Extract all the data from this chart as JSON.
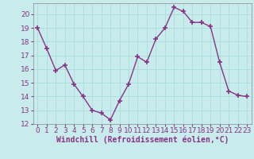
{
  "x": [
    0,
    1,
    2,
    3,
    4,
    5,
    6,
    7,
    8,
    9,
    10,
    11,
    12,
    13,
    14,
    15,
    16,
    17,
    18,
    19,
    20,
    21,
    22,
    23
  ],
  "y": [
    19,
    17.5,
    15.9,
    16.3,
    14.9,
    14.0,
    13.0,
    12.8,
    12.3,
    13.7,
    14.9,
    16.9,
    16.5,
    18.2,
    19.0,
    20.5,
    20.2,
    19.4,
    19.4,
    19.1,
    16.5,
    14.4,
    14.1,
    14.0
  ],
  "line_color": "#883388",
  "marker": "+",
  "marker_size": 4,
  "marker_lw": 1.2,
  "xlabel": "Windchill (Refroidissement éolien,°C)",
  "xlabel_fontsize": 7,
  "ylim": [
    12,
    20.8
  ],
  "xlim": [
    -0.5,
    23.5
  ],
  "yticks": [
    12,
    13,
    14,
    15,
    16,
    17,
    18,
    19,
    20
  ],
  "xticks": [
    0,
    1,
    2,
    3,
    4,
    5,
    6,
    7,
    8,
    9,
    10,
    11,
    12,
    13,
    14,
    15,
    16,
    17,
    18,
    19,
    20,
    21,
    22,
    23
  ],
  "xtick_labels": [
    "0",
    "1",
    "2",
    "3",
    "4",
    "5",
    "6",
    "7",
    "8",
    "9",
    "10",
    "11",
    "12",
    "13",
    "14",
    "15",
    "16",
    "17",
    "18",
    "19",
    "20",
    "21",
    "22",
    "23"
  ],
  "ytick_labels": [
    "12",
    "13",
    "14",
    "15",
    "16",
    "17",
    "18",
    "19",
    "20"
  ],
  "grid_color": "#aadddd",
  "bg_color": "#c8ecec",
  "tick_fontsize": 6.5,
  "line_width": 1.0
}
